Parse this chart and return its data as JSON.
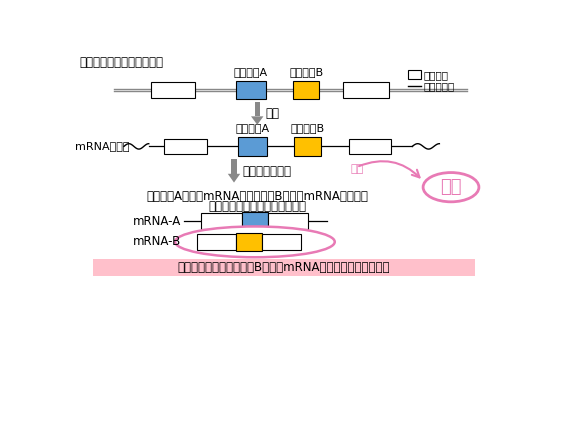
{
  "title_gene": "グルタミン酸受容体遺伝子",
  "label_mrna_precursor": "mRNA前駆体",
  "label_transcription": "転写",
  "label_splicing": "スプライシング",
  "label_effect": "影響",
  "label_hungry": "空腹",
  "label_exon_a": "エクソンA",
  "label_exon_b": "エクソンB",
  "label_exon": "エクソン",
  "label_intron": "イントロン",
  "label_mrna_a": "mRNA-A",
  "label_mrna_b": "mRNA-B",
  "label_result": "エクソンAを含むmRNAとエクソンBを含むmRNAができる",
  "label_result2": "（スプライシングバリアント）",
  "label_bottom": "空腹状態では、エクソンBを含むmRNAがより多く生成される",
  "color_exon_a": "#5b9bd5",
  "color_exon_b": "#ffc000",
  "color_arrow": "#7f7f7f",
  "color_pink": "#e87ab5",
  "color_box_border": "#000000",
  "color_bottom_bg": "#ffc0cb",
  "bg_color": "#ffffff"
}
